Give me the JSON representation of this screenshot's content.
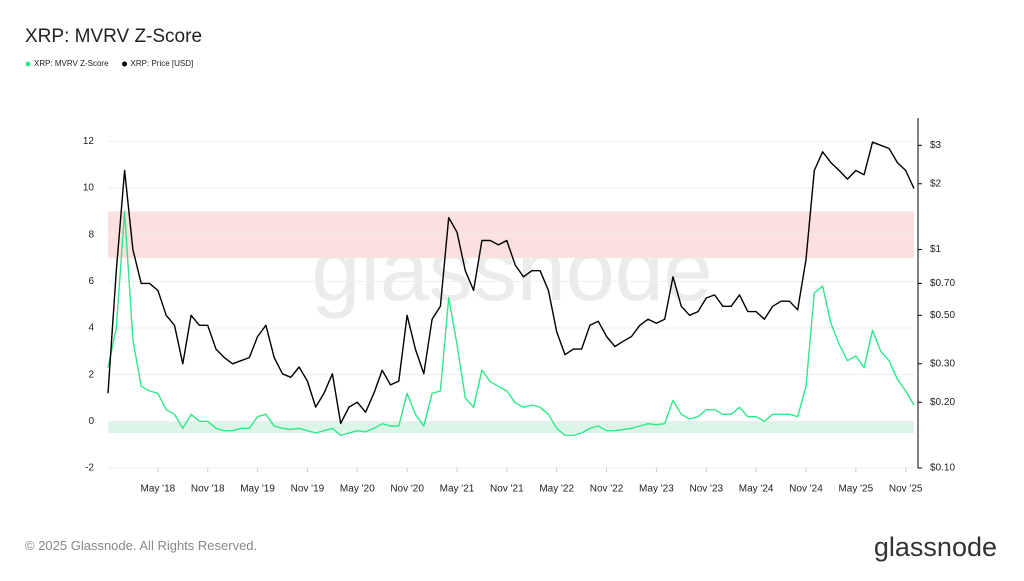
{
  "chart_data": {
    "type": "line",
    "title": "XRP: MVRV Z-Score",
    "watermark": "glassnode",
    "copyright": "© 2025 Glassnode. All Rights Reserved.",
    "logo": "glassnode",
    "grid": true,
    "y2_log": true,
    "x": [
      "2017-11",
      "2017-12",
      "2018-01",
      "2018-02",
      "2018-03",
      "2018-04",
      "2018-05",
      "2018-06",
      "2018-07",
      "2018-08",
      "2018-09",
      "2018-10",
      "2018-11",
      "2018-12",
      "2019-01",
      "2019-02",
      "2019-03",
      "2019-04",
      "2019-05",
      "2019-06",
      "2019-07",
      "2019-08",
      "2019-09",
      "2019-10",
      "2019-11",
      "2019-12",
      "2020-01",
      "2020-02",
      "2020-03",
      "2020-04",
      "2020-05",
      "2020-06",
      "2020-07",
      "2020-08",
      "2020-09",
      "2020-10",
      "2020-11",
      "2020-12",
      "2021-01",
      "2021-02",
      "2021-03",
      "2021-04",
      "2021-05",
      "2021-06",
      "2021-07",
      "2021-08",
      "2021-09",
      "2021-10",
      "2021-11",
      "2021-12",
      "2022-01",
      "2022-02",
      "2022-03",
      "2022-04",
      "2022-05",
      "2022-06",
      "2022-07",
      "2022-08",
      "2022-09",
      "2022-10",
      "2022-11",
      "2022-12",
      "2023-01",
      "2023-02",
      "2023-03",
      "2023-04",
      "2023-05",
      "2023-06",
      "2023-07",
      "2023-08",
      "2023-09",
      "2023-10",
      "2023-11",
      "2023-12",
      "2024-01",
      "2024-02",
      "2024-03",
      "2024-04",
      "2024-05",
      "2024-06",
      "2024-07",
      "2024-08",
      "2024-09",
      "2024-10",
      "2024-11",
      "2024-12",
      "2025-01",
      "2025-02",
      "2025-03",
      "2025-04",
      "2025-05",
      "2025-06",
      "2025-07",
      "2025-08",
      "2025-09",
      "2025-10",
      "2025-11",
      "2025-12"
    ],
    "xlim": [
      "2017-11",
      "2025-12"
    ],
    "xticks": [
      {
        "value": "2018-05",
        "label": "May '18"
      },
      {
        "value": "2018-11",
        "label": "Nov '18"
      },
      {
        "value": "2019-05",
        "label": "May '19"
      },
      {
        "value": "2019-11",
        "label": "Nov '19"
      },
      {
        "value": "2020-05",
        "label": "May '20"
      },
      {
        "value": "2020-11",
        "label": "Nov '20"
      },
      {
        "value": "2021-05",
        "label": "May '21"
      },
      {
        "value": "2021-11",
        "label": "Nov '21"
      },
      {
        "value": "2022-05",
        "label": "May '22"
      },
      {
        "value": "2022-11",
        "label": "Nov '22"
      },
      {
        "value": "2023-05",
        "label": "May '23"
      },
      {
        "value": "2023-11",
        "label": "Nov '23"
      },
      {
        "value": "2024-05",
        "label": "May '24"
      },
      {
        "value": "2024-11",
        "label": "Nov '24"
      },
      {
        "value": "2025-05",
        "label": "May '25"
      },
      {
        "value": "2025-11",
        "label": "Nov '25"
      }
    ],
    "ylim": [
      -2,
      13
    ],
    "yticks": [
      -2,
      0,
      2,
      4,
      6,
      8,
      10,
      12
    ],
    "y2lim": [
      0.1,
      4
    ],
    "y2ticks": [
      {
        "value": 0.1,
        "label": "$0.10"
      },
      {
        "value": 0.2,
        "label": "$0.20"
      },
      {
        "value": 0.3,
        "label": "$0.30"
      },
      {
        "value": 0.5,
        "label": "$0.50"
      },
      {
        "value": 0.7,
        "label": "$0.70"
      },
      {
        "value": 1,
        "label": "$1"
      },
      {
        "value": 2,
        "label": "$2"
      },
      {
        "value": 3,
        "label": "$3"
      }
    ],
    "bands": [
      {
        "from": 7,
        "to": 9,
        "color": "#fbe0df"
      },
      {
        "from": -0.5,
        "to": 0,
        "color": "#dcf5e8"
      }
    ],
    "series": [
      {
        "name": "XRP: MVRV Z-Score",
        "color": "#2ee88a",
        "values": [
          2.3,
          4,
          9,
          3.5,
          1.5,
          1.3,
          1.2,
          0.5,
          0.3,
          -0.3,
          0.3,
          0,
          0,
          -0.3,
          -0.4,
          -0.4,
          -0.3,
          -0.3,
          0.2,
          0.3,
          -0.2,
          -0.3,
          -0.35,
          -0.3,
          -0.4,
          -0.5,
          -0.4,
          -0.3,
          -0.6,
          -0.5,
          -0.4,
          -0.45,
          -0.3,
          -0.1,
          -0.2,
          -0.2,
          1.2,
          0.3,
          -0.2,
          1.2,
          1.3,
          5.3,
          3.3,
          1.0,
          0.6,
          2.2,
          1.7,
          1.5,
          1.3,
          0.8,
          0.6,
          0.7,
          0.6,
          0.3,
          -0.3,
          -0.6,
          -0.6,
          -0.5,
          -0.3,
          -0.2,
          -0.4,
          -0.4,
          -0.35,
          -0.3,
          -0.2,
          -0.1,
          -0.15,
          -0.1,
          0.9,
          0.3,
          0.1,
          0.2,
          0.5,
          0.5,
          0.3,
          0.3,
          0.6,
          0.2,
          0.2,
          0.0,
          0.3,
          0.3,
          0.3,
          0.2,
          1.5,
          5.5,
          5.8,
          4.2,
          3.3,
          2.6,
          2.8,
          2.3,
          3.9,
          3.0,
          2.6,
          1.8,
          1.3,
          0.7
        ]
      },
      {
        "name": "XRP: Price [USD]",
        "color": "#000000",
        "axis": "y2",
        "values": [
          0.22,
          0.8,
          2.3,
          1.0,
          0.7,
          0.7,
          0.65,
          0.5,
          0.45,
          0.3,
          0.5,
          0.45,
          0.45,
          0.35,
          0.32,
          0.3,
          0.31,
          0.32,
          0.4,
          0.45,
          0.32,
          0.27,
          0.26,
          0.29,
          0.25,
          0.19,
          0.22,
          0.27,
          0.16,
          0.19,
          0.2,
          0.18,
          0.22,
          0.28,
          0.24,
          0.25,
          0.5,
          0.35,
          0.27,
          0.48,
          0.55,
          1.4,
          1.2,
          0.8,
          0.65,
          1.1,
          1.1,
          1.05,
          1.1,
          0.85,
          0.75,
          0.8,
          0.8,
          0.65,
          0.42,
          0.33,
          0.35,
          0.35,
          0.45,
          0.47,
          0.4,
          0.36,
          0.38,
          0.4,
          0.45,
          0.48,
          0.46,
          0.48,
          0.75,
          0.55,
          0.5,
          0.52,
          0.6,
          0.62,
          0.55,
          0.55,
          0.62,
          0.52,
          0.52,
          0.48,
          0.55,
          0.58,
          0.58,
          0.53,
          0.9,
          2.3,
          2.8,
          2.5,
          2.3,
          2.1,
          2.3,
          2.2,
          3.1,
          3.0,
          2.9,
          2.5,
          2.3,
          1.9
        ]
      }
    ]
  }
}
